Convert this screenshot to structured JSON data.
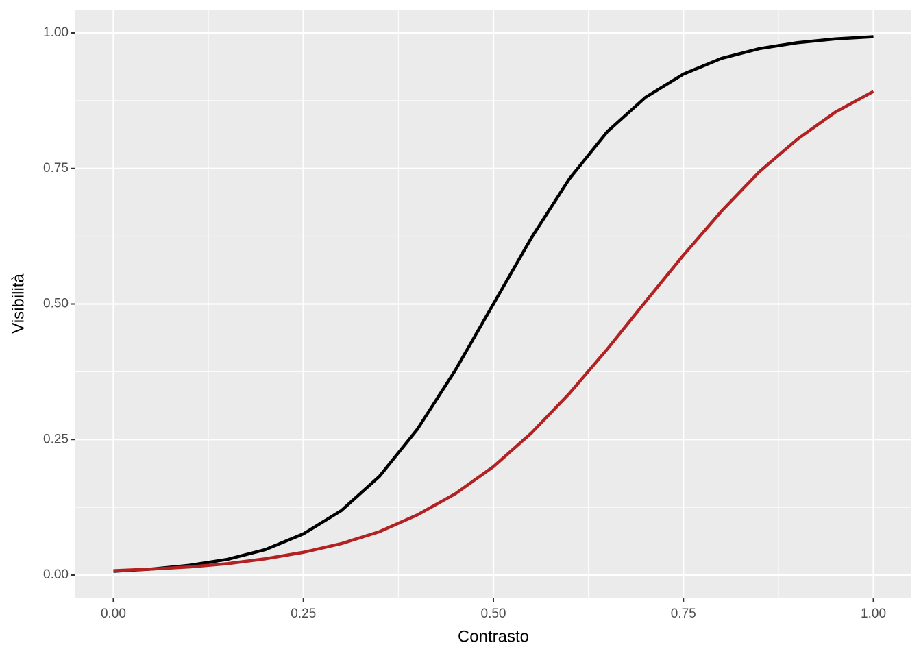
{
  "chart_data": {
    "type": "line",
    "x_label": "Contrasto",
    "y_label": "Visibilità",
    "x": [
      0,
      0.05,
      0.1,
      0.15,
      0.2,
      0.25,
      0.3,
      0.35,
      0.4,
      0.45,
      0.5,
      0.55,
      0.6,
      0.65,
      0.7,
      0.75,
      0.8,
      0.85,
      0.9,
      0.95,
      1
    ],
    "series": [
      {
        "color": "#000000",
        "values": [
          0.007,
          0.011,
          0.018,
          0.029,
          0.047,
          0.076,
          0.119,
          0.182,
          0.269,
          0.378,
          0.5,
          0.622,
          0.731,
          0.818,
          0.881,
          0.924,
          0.953,
          0.971,
          0.982,
          0.989,
          0.993
        ]
      },
      {
        "color": "#b22222",
        "values": [
          0.008,
          0.011,
          0.015,
          0.021,
          0.03,
          0.042,
          0.058,
          0.08,
          0.111,
          0.15,
          0.2,
          0.262,
          0.335,
          0.417,
          0.504,
          0.59,
          0.671,
          0.744,
          0.804,
          0.854,
          0.892
        ]
      }
    ],
    "xlim": [
      -0.05,
      1.05
    ],
    "ylim": [
      -0.043,
      1.043
    ],
    "xticks": [
      {
        "value": 0,
        "label": "0.00"
      },
      {
        "value": 0.25,
        "label": "0.25"
      },
      {
        "value": 0.5,
        "label": "0.50"
      },
      {
        "value": 0.75,
        "label": "0.75"
      },
      {
        "value": 1,
        "label": "1.00"
      }
    ],
    "yticks": [
      {
        "value": 0,
        "label": "0.00"
      },
      {
        "value": 0.25,
        "label": "0.25"
      },
      {
        "value": 0.5,
        "label": "0.50"
      },
      {
        "value": 0.75,
        "label": "0.75"
      },
      {
        "value": 1,
        "label": "1.00"
      }
    ],
    "grid": true
  }
}
